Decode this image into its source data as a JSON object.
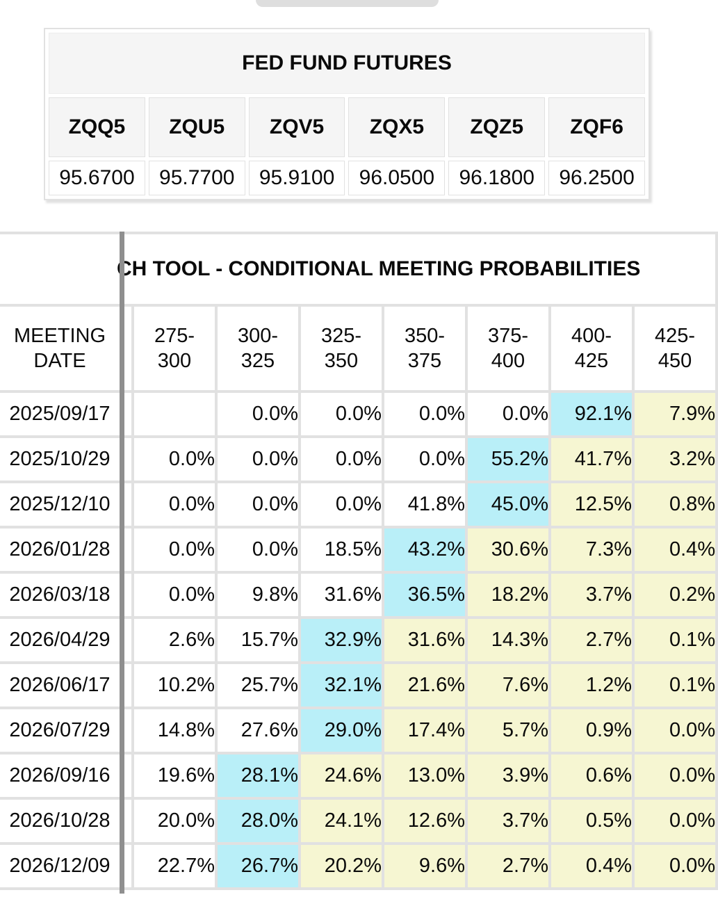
{
  "futures_table": {
    "title": "FED FUND FUTURES",
    "contracts": [
      "ZQQ5",
      "ZQU5",
      "ZQV5",
      "ZQX5",
      "ZQZ5",
      "ZQF6"
    ],
    "prices": [
      "95.6700",
      "95.7700",
      "95.9100",
      "96.0500",
      "96.1800",
      "96.2500"
    ]
  },
  "fedwatch_table": {
    "title": "CH TOOL - CONDITIONAL MEETING PROBABILITIES",
    "meeting_date_header": "MEETING DATE",
    "rate_range_columns": [
      "275-300",
      "300-325",
      "325-350",
      "350-375",
      "375-400",
      "400-425",
      "425-450"
    ],
    "rows": [
      {
        "date": "2025/09/17",
        "values": [
          "",
          "0.0%",
          "0.0%",
          "0.0%",
          "0.0%",
          "92.1%",
          "7.9%"
        ],
        "max_index": 5
      },
      {
        "date": "2025/10/29",
        "values": [
          "0.0%",
          "0.0%",
          "0.0%",
          "0.0%",
          "55.2%",
          "41.7%",
          "3.2%"
        ],
        "max_index": 4
      },
      {
        "date": "2025/12/10",
        "values": [
          "0.0%",
          "0.0%",
          "0.0%",
          "41.8%",
          "45.0%",
          "12.5%",
          "0.8%"
        ],
        "max_index": 4
      },
      {
        "date": "2026/01/28",
        "values": [
          "0.0%",
          "0.0%",
          "18.5%",
          "43.2%",
          "30.6%",
          "7.3%",
          "0.4%"
        ],
        "max_index": 3
      },
      {
        "date": "2026/03/18",
        "values": [
          "0.0%",
          "9.8%",
          "31.6%",
          "36.5%",
          "18.2%",
          "3.7%",
          "0.2%"
        ],
        "max_index": 3
      },
      {
        "date": "2026/04/29",
        "values": [
          "2.6%",
          "15.7%",
          "32.9%",
          "31.6%",
          "14.3%",
          "2.7%",
          "0.1%"
        ],
        "max_index": 2
      },
      {
        "date": "2026/06/17",
        "values": [
          "10.2%",
          "25.7%",
          "32.1%",
          "21.6%",
          "7.6%",
          "1.2%",
          "0.1%"
        ],
        "max_index": 2
      },
      {
        "date": "2026/07/29",
        "values": [
          "14.8%",
          "27.6%",
          "29.0%",
          "17.4%",
          "5.7%",
          "0.9%",
          "0.0%"
        ],
        "max_index": 2
      },
      {
        "date": "2026/09/16",
        "values": [
          "19.6%",
          "28.1%",
          "24.6%",
          "13.0%",
          "3.9%",
          "0.6%",
          "0.0%"
        ],
        "max_index": 1
      },
      {
        "date": "2026/10/28",
        "values": [
          "20.0%",
          "28.0%",
          "24.1%",
          "12.6%",
          "3.7%",
          "0.5%",
          "0.0%"
        ],
        "max_index": 1
      },
      {
        "date": "2026/12/09",
        "values": [
          "22.7%",
          "26.7%",
          "20.2%",
          "9.6%",
          "2.7%",
          "0.4%",
          "0.0%"
        ],
        "max_index": 1
      }
    ],
    "colors": {
      "max_probability_highlight": "#b9eff8",
      "right_tail_highlight": "#f6f6d2",
      "header_background": "#f5f5f5",
      "grid_line": "#e1e1e1",
      "pane_divider": "#8f8f8f",
      "tab_gray": "#dedede"
    }
  }
}
